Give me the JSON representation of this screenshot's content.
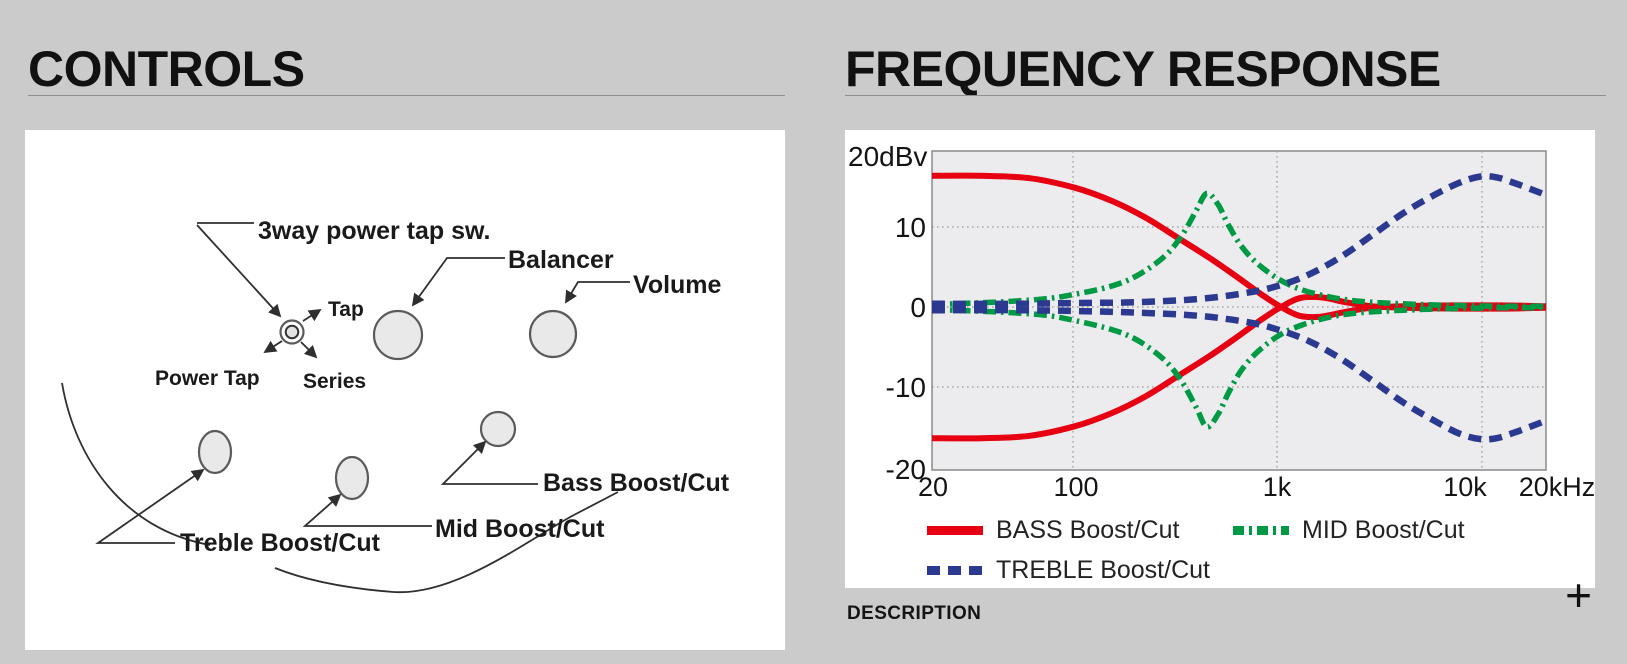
{
  "page": {
    "background": "#cbcbcb"
  },
  "left_section": {
    "title": "CONTROLS",
    "diagram": {
      "labels": {
        "power_tap_switch": "3way power tap sw.",
        "tap": "Tap",
        "power_tap": "Power Tap",
        "series": "Series",
        "balancer": "Balancer",
        "volume": "Volume",
        "treble": "Treble Boost/Cut",
        "mid": "Mid Boost/Cut",
        "bass": "Bass Boost/Cut"
      }
    }
  },
  "right_section": {
    "title": "FREQUENCY RESPONSE",
    "description": {
      "label": "DESCRIPTION",
      "expand_icon": "+"
    }
  },
  "chart_data": {
    "type": "line",
    "x_scale": "log",
    "xlim": [
      20,
      20000
    ],
    "ylim": [
      -20,
      20
    ],
    "y_unit": "dBv",
    "grid": "dotted",
    "x_tick_labels": [
      "20",
      "100",
      "1k",
      "10k",
      "20kHz"
    ],
    "x_tick_values": [
      20,
      100,
      1000,
      10000,
      20000
    ],
    "y_tick_labels": [
      "20dBv",
      "10",
      "0",
      "-10",
      "-20"
    ],
    "y_tick_values": [
      20,
      10,
      0,
      -10,
      -20
    ],
    "legend_position": "below-left",
    "legend": [
      {
        "label": "BASS Boost/Cut",
        "color": "#e60012",
        "style": "solid"
      },
      {
        "label": "MID Boost/Cut",
        "color": "#009a44",
        "style": "dash-dot"
      },
      {
        "label": "TREBLE Boost/Cut",
        "color": "#2b3990",
        "style": "dashed"
      }
    ],
    "series": [
      {
        "id": "bass-boost",
        "legend": "BASS Boost/Cut",
        "color": "#e60012",
        "style": "solid",
        "width": 6,
        "points": [
          [
            20,
            16.4
          ],
          [
            35,
            16.4
          ],
          [
            60,
            16.1
          ],
          [
            100,
            14.9
          ],
          [
            150,
            13.3
          ],
          [
            220,
            11.2
          ],
          [
            320,
            8.6
          ],
          [
            450,
            6.2
          ],
          [
            600,
            4.0
          ],
          [
            800,
            1.7
          ],
          [
            1000,
            0.1
          ],
          [
            1250,
            -1.1
          ],
          [
            1600,
            -1.2
          ],
          [
            2100,
            -0.6
          ],
          [
            2800,
            -0.1
          ],
          [
            4000,
            0.1
          ],
          [
            7000,
            0.2
          ],
          [
            12000,
            0.2
          ],
          [
            20000,
            0.1
          ]
        ]
      },
      {
        "id": "bass-cut",
        "legend": "BASS Boost/Cut",
        "color": "#e60012",
        "style": "solid",
        "width": 6,
        "points": [
          [
            20,
            -16.4
          ],
          [
            35,
            -16.4
          ],
          [
            60,
            -16.1
          ],
          [
            100,
            -14.9
          ],
          [
            150,
            -13.3
          ],
          [
            220,
            -11.2
          ],
          [
            320,
            -8.6
          ],
          [
            450,
            -6.2
          ],
          [
            600,
            -4.0
          ],
          [
            800,
            -1.7
          ],
          [
            1000,
            -0.1
          ],
          [
            1250,
            1.1
          ],
          [
            1600,
            1.2
          ],
          [
            2100,
            0.6
          ],
          [
            2800,
            0.1
          ],
          [
            4000,
            -0.1
          ],
          [
            7000,
            -0.2
          ],
          [
            12000,
            -0.2
          ],
          [
            20000,
            -0.1
          ]
        ]
      },
      {
        "id": "mid-boost",
        "legend": "MID Boost/Cut",
        "color": "#009a44",
        "style": "dash-dot",
        "width": 5.5,
        "points": [
          [
            20,
            0.3
          ],
          [
            40,
            0.6
          ],
          [
            70,
            1.0
          ],
          [
            100,
            1.6
          ],
          [
            150,
            2.6
          ],
          [
            200,
            3.9
          ],
          [
            270,
            6.2
          ],
          [
            330,
            8.8
          ],
          [
            390,
            12.0
          ],
          [
            440,
            14.2
          ],
          [
            500,
            12.8
          ],
          [
            560,
            10.3
          ],
          [
            650,
            7.6
          ],
          [
            780,
            5.4
          ],
          [
            1000,
            3.4
          ],
          [
            1300,
            2.1
          ],
          [
            1800,
            1.2
          ],
          [
            2500,
            0.7
          ],
          [
            4000,
            0.4
          ],
          [
            7000,
            0.2
          ],
          [
            12000,
            0.1
          ],
          [
            20000,
            0.1
          ]
        ]
      },
      {
        "id": "mid-cut",
        "legend": "MID Boost/Cut",
        "color": "#009a44",
        "style": "dash-dot",
        "width": 5.5,
        "points": [
          [
            20,
            -0.3
          ],
          [
            40,
            -0.6
          ],
          [
            70,
            -1.0
          ],
          [
            100,
            -1.7
          ],
          [
            150,
            -2.8
          ],
          [
            200,
            -4.1
          ],
          [
            270,
            -6.5
          ],
          [
            330,
            -9.2
          ],
          [
            390,
            -12.5
          ],
          [
            440,
            -15.0
          ],
          [
            500,
            -13.4
          ],
          [
            560,
            -10.8
          ],
          [
            650,
            -7.9
          ],
          [
            780,
            -5.6
          ],
          [
            1000,
            -3.5
          ],
          [
            1300,
            -2.2
          ],
          [
            1800,
            -1.2
          ],
          [
            2500,
            -0.7
          ],
          [
            4000,
            -0.4
          ],
          [
            7000,
            -0.2
          ],
          [
            12000,
            -0.1
          ],
          [
            20000,
            -0.1
          ]
        ]
      },
      {
        "id": "treble-boost",
        "legend": "TREBLE Boost/Cut",
        "color": "#2b3990",
        "style": "dashed",
        "width": 6.5,
        "points": [
          [
            20,
            0.4
          ],
          [
            50,
            0.4
          ],
          [
            100,
            0.5
          ],
          [
            200,
            0.6
          ],
          [
            400,
            1.0
          ],
          [
            700,
            1.8
          ],
          [
            1000,
            2.7
          ],
          [
            1400,
            4.1
          ],
          [
            2000,
            6.3
          ],
          [
            2800,
            8.9
          ],
          [
            4000,
            11.7
          ],
          [
            5500,
            13.8
          ],
          [
            7500,
            15.5
          ],
          [
            9500,
            16.3
          ],
          [
            11500,
            16.2
          ],
          [
            14000,
            15.5
          ],
          [
            17000,
            14.7
          ],
          [
            20000,
            14.0
          ]
        ]
      },
      {
        "id": "treble-cut",
        "legend": "TREBLE Boost/Cut",
        "color": "#2b3990",
        "style": "dashed",
        "width": 6.5,
        "points": [
          [
            20,
            -0.4
          ],
          [
            50,
            -0.4
          ],
          [
            100,
            -0.5
          ],
          [
            200,
            -0.7
          ],
          [
            400,
            -1.1
          ],
          [
            700,
            -1.9
          ],
          [
            1000,
            -2.9
          ],
          [
            1400,
            -4.3
          ],
          [
            2000,
            -6.5
          ],
          [
            2800,
            -9.1
          ],
          [
            4000,
            -11.9
          ],
          [
            5500,
            -14.0
          ],
          [
            7500,
            -15.8
          ],
          [
            9500,
            -16.5
          ],
          [
            11500,
            -16.4
          ],
          [
            14000,
            -15.7
          ],
          [
            17000,
            -14.9
          ],
          [
            20000,
            -14.2
          ]
        ]
      }
    ]
  }
}
